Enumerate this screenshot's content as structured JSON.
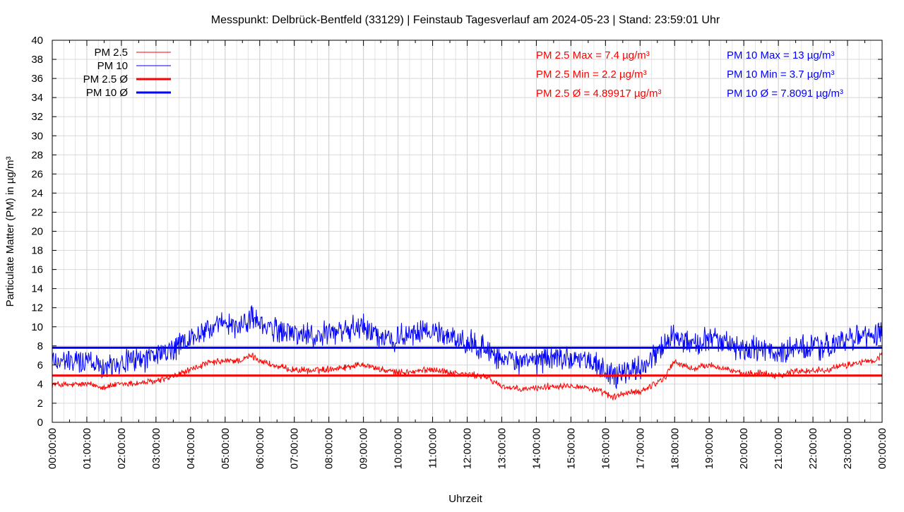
{
  "chart_data": {
    "type": "line",
    "title": "Messpunkt: Delbrück-Bentfeld (33129) | Feinstaub Tagesverlauf am 2024-05-23 | Stand: 23:59:01 Uhr",
    "xlabel": "Uhrzeit",
    "ylabel": "Particulate Matter (PM) in µg/m³",
    "xlim": [
      0,
      24
    ],
    "ylim": [
      0,
      40
    ],
    "grid": true,
    "legend_position": "top-left",
    "x_ticks": [
      "00:00:00",
      "01:00:00",
      "02:00:00",
      "03:00:00",
      "04:00:00",
      "05:00:00",
      "06:00:00",
      "07:00:00",
      "08:00:00",
      "09:00:00",
      "10:00:00",
      "11:00:00",
      "12:00:00",
      "13:00:00",
      "14:00:00",
      "15:00:00",
      "16:00:00",
      "17:00:00",
      "18:00:00",
      "19:00:00",
      "20:00:00",
      "21:00:00",
      "22:00:00",
      "23:00:00",
      "00:00:00"
    ],
    "y_ticks": [
      0,
      2,
      4,
      6,
      8,
      10,
      12,
      14,
      16,
      18,
      20,
      22,
      24,
      26,
      28,
      30,
      32,
      34,
      36,
      38,
      40
    ],
    "series": [
      {
        "name": "PM 2.5",
        "color": "#ff0000",
        "x": [
          0,
          0.5,
          1,
          1.5,
          2,
          2.5,
          3,
          3.5,
          4,
          4.5,
          5,
          5.5,
          5.75,
          6,
          6.5,
          7,
          7.5,
          8,
          8.5,
          9,
          9.5,
          10,
          10.5,
          11,
          11.5,
          12,
          12.5,
          13,
          13.5,
          14,
          14.5,
          15,
          15.5,
          16,
          16.25,
          16.5,
          17,
          17.5,
          17.75,
          17.9,
          18,
          18.5,
          19,
          19.5,
          20,
          20.5,
          21,
          21.5,
          22,
          22.5,
          23,
          23.5,
          23.8,
          24
        ],
        "values": [
          4.0,
          3.9,
          4.0,
          3.7,
          4.0,
          4.1,
          4.3,
          4.8,
          5.5,
          6.2,
          6.4,
          6.5,
          7.0,
          6.5,
          5.8,
          5.5,
          5.4,
          5.6,
          5.8,
          6.1,
          5.5,
          5.2,
          5.3,
          5.6,
          5.2,
          5.0,
          4.8,
          3.8,
          3.4,
          3.6,
          3.8,
          3.9,
          3.6,
          3.0,
          2.6,
          3.0,
          3.2,
          4.2,
          4.8,
          6.0,
          6.3,
          5.6,
          6.0,
          5.6,
          5.0,
          5.2,
          4.9,
          5.4,
          5.4,
          5.6,
          6.0,
          6.4,
          6.3,
          7.2
        ]
      },
      {
        "name": "PM 10",
        "color": "#0000ff",
        "x": [
          0,
          0.5,
          1,
          1.5,
          2,
          2.5,
          3,
          3.5,
          4,
          4.5,
          5,
          5.5,
          5.75,
          6,
          6.5,
          7,
          7.5,
          8,
          8.5,
          9,
          9.5,
          10,
          10.5,
          11,
          11.5,
          12,
          12.5,
          13,
          13.5,
          14,
          14.5,
          15,
          15.5,
          16,
          16.25,
          16.5,
          17,
          17.5,
          17.75,
          17.9,
          18,
          18.5,
          19,
          19.5,
          20,
          20.5,
          21,
          21.5,
          22,
          22.5,
          23,
          23.5,
          23.8,
          24
        ],
        "values": [
          6.5,
          6.3,
          6.5,
          6.0,
          6.3,
          6.6,
          7.0,
          7.6,
          8.7,
          9.8,
          10.2,
          10.0,
          11.3,
          10.2,
          9.6,
          9.3,
          9.0,
          9.3,
          9.6,
          10.0,
          9.0,
          8.8,
          9.2,
          9.6,
          8.9,
          8.3,
          7.8,
          6.6,
          6.2,
          6.4,
          6.8,
          6.9,
          6.4,
          5.4,
          4.7,
          5.4,
          5.7,
          7.2,
          7.9,
          9.3,
          8.9,
          8.1,
          8.9,
          8.2,
          7.5,
          7.7,
          7.3,
          7.7,
          7.8,
          8.0,
          8.7,
          9.0,
          8.8,
          9.6
        ]
      },
      {
        "name": "PM 2.5 Ø",
        "color": "#ff0000",
        "values": [
          4.89917
        ]
      },
      {
        "name": "PM 10 Ø",
        "color": "#0000ff",
        "values": [
          7.8091
        ]
      }
    ],
    "annotations": {
      "pm25": [
        "PM 2.5 Max = 7.4 µg/m³",
        "PM 2.5 Min = 2.2 µg/m³",
        "PM 2.5 Ø = 4.89917 µg/m³"
      ],
      "pm10": [
        "PM 10 Max = 13 µg/m³",
        "PM 10 Min = 3.7 µg/m³",
        "PM 10 Ø = 7.8091 µg/m³"
      ]
    }
  }
}
